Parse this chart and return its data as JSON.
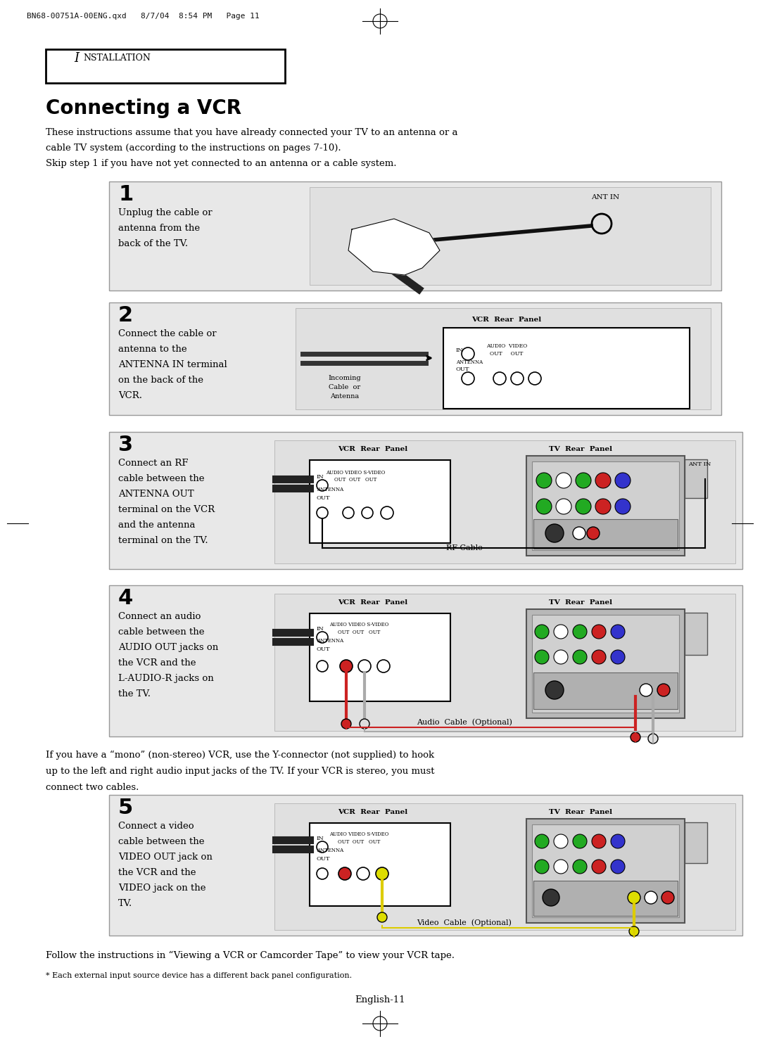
{
  "page_bg": "#ffffff",
  "header_text": "BN68-00751A-00ENG.qxd   8/7/04  8:54 PM   Page 11",
  "section_label": "INSTALLATION",
  "title": "Connecting a VCR",
  "intro_lines": [
    "These instructions assume that you have already connected your TV to an antenna or a",
    "cable TV system (according to the instructions on pages 7-10).",
    "Skip step 1 if you have not yet connected to an antenna or a cable system."
  ],
  "step1_text": [
    "Unplug the cable or",
    "antenna from the",
    "back of the TV."
  ],
  "step2_text": [
    "Connect the cable or",
    "antenna to the",
    "ANTENNA IN terminal",
    "on the back of the",
    "VCR."
  ],
  "step3_text": [
    "Connect an RF",
    "cable between the",
    "ANTENNA OUT",
    "terminal on the VCR",
    "and the antenna",
    "terminal on the TV."
  ],
  "step4_text": [
    "Connect an audio",
    "cable between the",
    "AUDIO OUT jacks on",
    "the VCR and the",
    "L-AUDIO-R jacks on",
    "the TV."
  ],
  "mono_text": [
    "If you have a “mono” (non-stereo) VCR, use the Y-connector (not supplied) to hook",
    "up to the left and right audio input jacks of the TV. If your VCR is stereo, you must",
    "connect two cables."
  ],
  "step5_text": [
    "Connect a video",
    "cable between the",
    "VIDEO OUT jack on",
    "the VCR and the",
    "VIDEO jack on the",
    "TV."
  ],
  "follow_text": "Follow the instructions in “Viewing a VCR or Camcorder Tape” to view your VCR tape.",
  "footnote": "* Each external input source device has a different back panel configuration.",
  "page_num": "English-11",
  "step_bg": "#e8e8e8",
  "diag_bg": "#e0e0e0",
  "vcr_bg": "#ffffff",
  "tv_bg": "#c8c8c8"
}
